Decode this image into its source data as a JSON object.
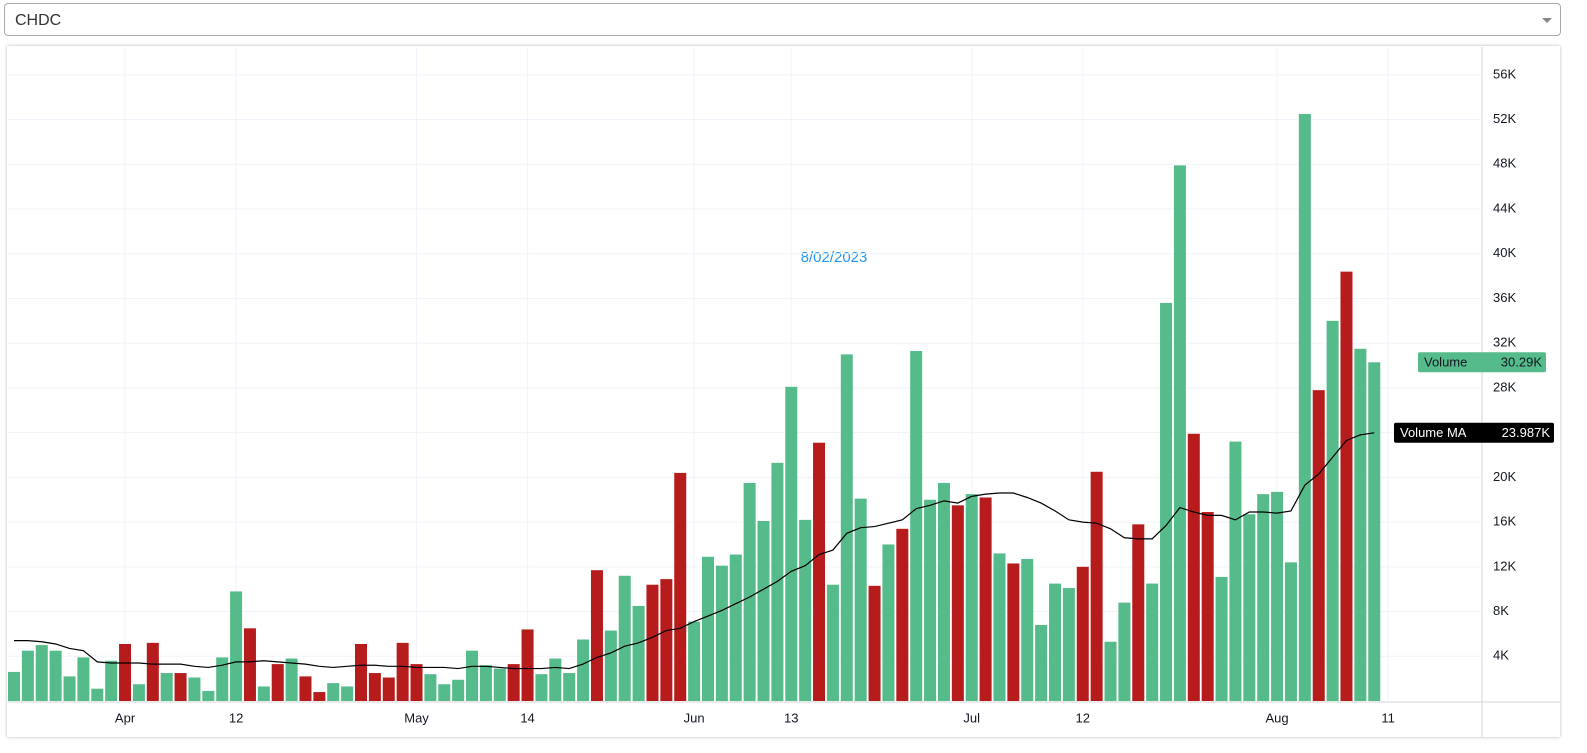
{
  "selector": {
    "value": "CHDC"
  },
  "chart_data": {
    "type": "bar",
    "annotation": "8/02/2023",
    "categories": [
      null,
      null,
      null,
      null,
      null,
      null,
      null,
      null,
      "Apr",
      null,
      null,
      null,
      null,
      null,
      null,
      null,
      "12",
      null,
      null,
      null,
      null,
      null,
      null,
      null,
      null,
      null,
      null,
      null,
      null,
      "May",
      null,
      null,
      null,
      null,
      null,
      null,
      null,
      "14",
      null,
      null,
      null,
      null,
      null,
      null,
      null,
      null,
      null,
      null,
      null,
      "Jun",
      null,
      null,
      null,
      null,
      null,
      null,
      "13",
      null,
      null,
      null,
      null,
      null,
      null,
      null,
      null,
      null,
      null,
      null,
      null,
      "Jul",
      null,
      null,
      null,
      null,
      null,
      null,
      null,
      "12",
      null,
      null,
      null,
      null,
      null,
      null,
      null,
      null,
      null,
      null,
      null,
      null,
      null,
      "Aug",
      null,
      null,
      null,
      null,
      null,
      null,
      null,
      "11"
    ],
    "ylim": [
      0,
      58400
    ],
    "yticks": [
      {
        "value": 4000,
        "label": "4K"
      },
      {
        "value": 8000,
        "label": "8K"
      },
      {
        "value": 12000,
        "label": "12K"
      },
      {
        "value": 16000,
        "label": "16K"
      },
      {
        "value": 20000,
        "label": "20K"
      },
      {
        "value": 24000,
        "label": "24K"
      },
      {
        "value": 28000,
        "label": "28K"
      },
      {
        "value": 32000,
        "label": "32K"
      },
      {
        "value": 36000,
        "label": "36K"
      },
      {
        "value": 40000,
        "label": "40K"
      },
      {
        "value": 44000,
        "label": "44K"
      },
      {
        "value": 48000,
        "label": "48K"
      },
      {
        "value": 52000,
        "label": "52K"
      },
      {
        "value": 56000,
        "label": "56K"
      }
    ],
    "grid": true,
    "series": [
      {
        "name": "Volume",
        "type": "bar",
        "color": "#56bb8a",
        "up_color": "#56bb8a",
        "down_color": "#b71c1c",
        "values": [
          2600,
          4500,
          5000,
          4500,
          2200,
          3900,
          1100,
          3600,
          5100,
          1500,
          5200,
          2500,
          2500,
          2100,
          900,
          3900,
          9800,
          6500,
          1300,
          3300,
          3800,
          2200,
          800,
          1600,
          1300,
          5100,
          2500,
          2100,
          5200,
          3300,
          2400,
          1500,
          1900,
          4500,
          3200,
          2900,
          3300,
          6400,
          2400,
          3800,
          2500,
          5500,
          11700,
          6300,
          11200,
          8500,
          10400,
          10900,
          20400,
          7100,
          12900,
          12100,
          13100,
          19500,
          16100,
          21300,
          28100,
          16200,
          23100,
          10400,
          31000,
          18100,
          10300,
          14000,
          15400,
          31300,
          18000,
          19500,
          17500,
          18500,
          18200,
          13200,
          12300,
          12700,
          6800,
          10500,
          10100,
          12000,
          20500,
          5300,
          8800,
          15800,
          10500,
          35600,
          47900,
          23900,
          16900,
          11100,
          23200,
          16700,
          18500,
          18700,
          12400,
          52500,
          27800,
          34000,
          38400,
          31500,
          30290,
          null
        ],
        "up": [
          true,
          true,
          true,
          true,
          true,
          true,
          true,
          true,
          false,
          true,
          false,
          true,
          false,
          true,
          true,
          true,
          true,
          false,
          true,
          false,
          true,
          false,
          false,
          true,
          true,
          false,
          false,
          false,
          false,
          false,
          true,
          true,
          true,
          true,
          true,
          true,
          false,
          false,
          true,
          true,
          true,
          true,
          false,
          true,
          true,
          true,
          false,
          false,
          false,
          true,
          true,
          true,
          true,
          true,
          true,
          true,
          true,
          true,
          false,
          true,
          true,
          true,
          false,
          true,
          false,
          true,
          true,
          true,
          false,
          true,
          false,
          true,
          false,
          true,
          true,
          true,
          true,
          false,
          false,
          true,
          true,
          false,
          true,
          true,
          true,
          false,
          false,
          true,
          true,
          true,
          true,
          true,
          true,
          true,
          false,
          true,
          false,
          true,
          true,
          null
        ],
        "value_labels": [
          null,
          null,
          null,
          null,
          null,
          null,
          null,
          null,
          null,
          null,
          null,
          null,
          null,
          null,
          null,
          null,
          null,
          null,
          null,
          null,
          null,
          null,
          null,
          null,
          null,
          null,
          null,
          null,
          null,
          null,
          null,
          null,
          null,
          null,
          null,
          null,
          null,
          null,
          null,
          null,
          null,
          null,
          null,
          null,
          null,
          null,
          null,
          null,
          null,
          null,
          null,
          null,
          null,
          null,
          null,
          null,
          null,
          null,
          null,
          null,
          null,
          null,
          null,
          null,
          null,
          null,
          null,
          null,
          null,
          null,
          null,
          null,
          null,
          null,
          null,
          null,
          null,
          null,
          null,
          null,
          null,
          null,
          null,
          null,
          null,
          null,
          null,
          null,
          null,
          null,
          null,
          null,
          null,
          null,
          null,
          null,
          null,
          null,
          "30.29K",
          null
        ]
      },
      {
        "name": "Volume MA",
        "type": "line",
        "color": "#000000",
        "values": [
          5400,
          5400,
          5300,
          5100,
          4700,
          4500,
          3500,
          3400,
          3400,
          3400,
          3300,
          3300,
          3300,
          3100,
          3000,
          3200,
          3500,
          3500,
          3600,
          3500,
          3400,
          3300,
          3100,
          3000,
          3100,
          3200,
          3200,
          3100,
          3100,
          3000,
          3000,
          3000,
          2900,
          3100,
          3100,
          3000,
          2900,
          2900,
          2900,
          3000,
          2900,
          3300,
          3900,
          4300,
          4900,
          5200,
          5700,
          6300,
          6500,
          7100,
          7600,
          8100,
          8700,
          9300,
          10000,
          10700,
          11600,
          12100,
          13100,
          13500,
          15000,
          15500,
          15600,
          15900,
          16200,
          17200,
          17500,
          17900,
          17700,
          18300,
          18500,
          18600,
          18600,
          18200,
          17700,
          17000,
          16200,
          16000,
          15900,
          15400,
          14600,
          14500,
          14500,
          15700,
          17300,
          16900,
          16600,
          16600,
          16200,
          16900,
          16900,
          16800,
          17000,
          19300,
          20300,
          21800,
          23300,
          23800,
          23987,
          null
        ],
        "value_labels": [
          null,
          null,
          null,
          null,
          null,
          null,
          null,
          null,
          null,
          null,
          null,
          null,
          null,
          null,
          null,
          null,
          null,
          null,
          null,
          null,
          null,
          null,
          null,
          null,
          null,
          null,
          null,
          null,
          null,
          null,
          null,
          null,
          null,
          null,
          null,
          null,
          null,
          null,
          null,
          null,
          null,
          null,
          null,
          null,
          null,
          null,
          null,
          null,
          null,
          null,
          null,
          null,
          null,
          null,
          null,
          null,
          null,
          null,
          null,
          null,
          null,
          null,
          null,
          null,
          null,
          null,
          null,
          null,
          null,
          null,
          null,
          null,
          null,
          null,
          null,
          null,
          null,
          null,
          null,
          null,
          null,
          null,
          null,
          null,
          null,
          null,
          null,
          null,
          null,
          null,
          null,
          null,
          null,
          null,
          null,
          null,
          null,
          null,
          "23.987K",
          null
        ]
      }
    ]
  }
}
